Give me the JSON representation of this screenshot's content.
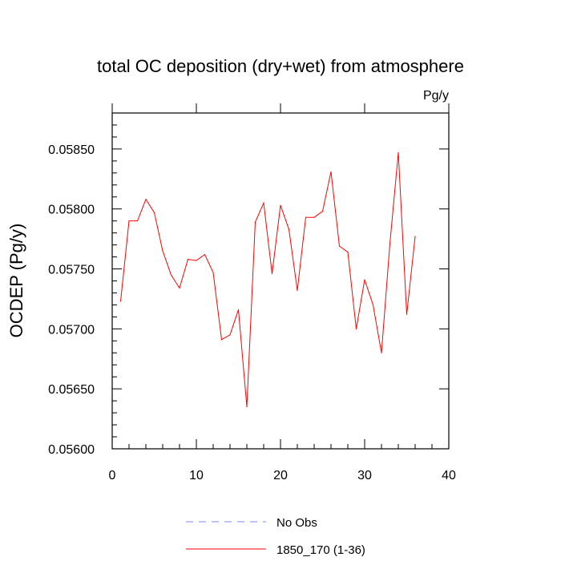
{
  "chart_data": {
    "type": "line",
    "title": "total OC deposition (dry+wet) from atmosphere",
    "units_label": "Pg/y",
    "xlabel": "",
    "ylabel": "OCDEP  (Pg/y)",
    "xlim": [
      0,
      40
    ],
    "ylim": [
      0.056,
      0.0588
    ],
    "x_ticks": [
      0,
      10,
      20,
      30,
      40
    ],
    "x_tick_labels": [
      "0",
      "10",
      "20",
      "30",
      "40"
    ],
    "y_ticks": [
      0.056,
      0.0565,
      0.057,
      0.0575,
      0.058,
      0.0585
    ],
    "y_tick_labels": [
      "0.05600",
      "0.05650",
      "0.05700",
      "0.05750",
      "0.05800",
      "0.05850"
    ],
    "grid": false,
    "legend_position": "bottom",
    "series": [
      {
        "name": "No Obs",
        "color": "#8080ff",
        "dash": "dashed",
        "x": [],
        "values": []
      },
      {
        "name": "1850_170 (1-36)",
        "color": "#ff0000",
        "dash": "solid",
        "x": [
          1,
          2,
          3,
          4,
          5,
          6,
          7,
          8,
          9,
          10,
          11,
          12,
          13,
          14,
          15,
          16,
          17,
          18,
          19,
          20,
          21,
          22,
          23,
          24,
          25,
          26,
          27,
          28,
          29,
          30,
          31,
          32,
          33,
          34,
          35,
          36
        ],
        "values": [
          0.05723,
          0.0579,
          0.0579,
          0.05808,
          0.05797,
          0.05765,
          0.05745,
          0.05734,
          0.05758,
          0.05757,
          0.05762,
          0.05747,
          0.05691,
          0.05695,
          0.05716,
          0.05635,
          0.05789,
          0.05805,
          0.05746,
          0.05803,
          0.05783,
          0.05732,
          0.05793,
          0.05793,
          0.05798,
          0.05831,
          0.05769,
          0.05764,
          0.057,
          0.05741,
          0.0572,
          0.0568,
          0.05771,
          0.05847,
          0.05712,
          0.05777
        ]
      }
    ]
  }
}
